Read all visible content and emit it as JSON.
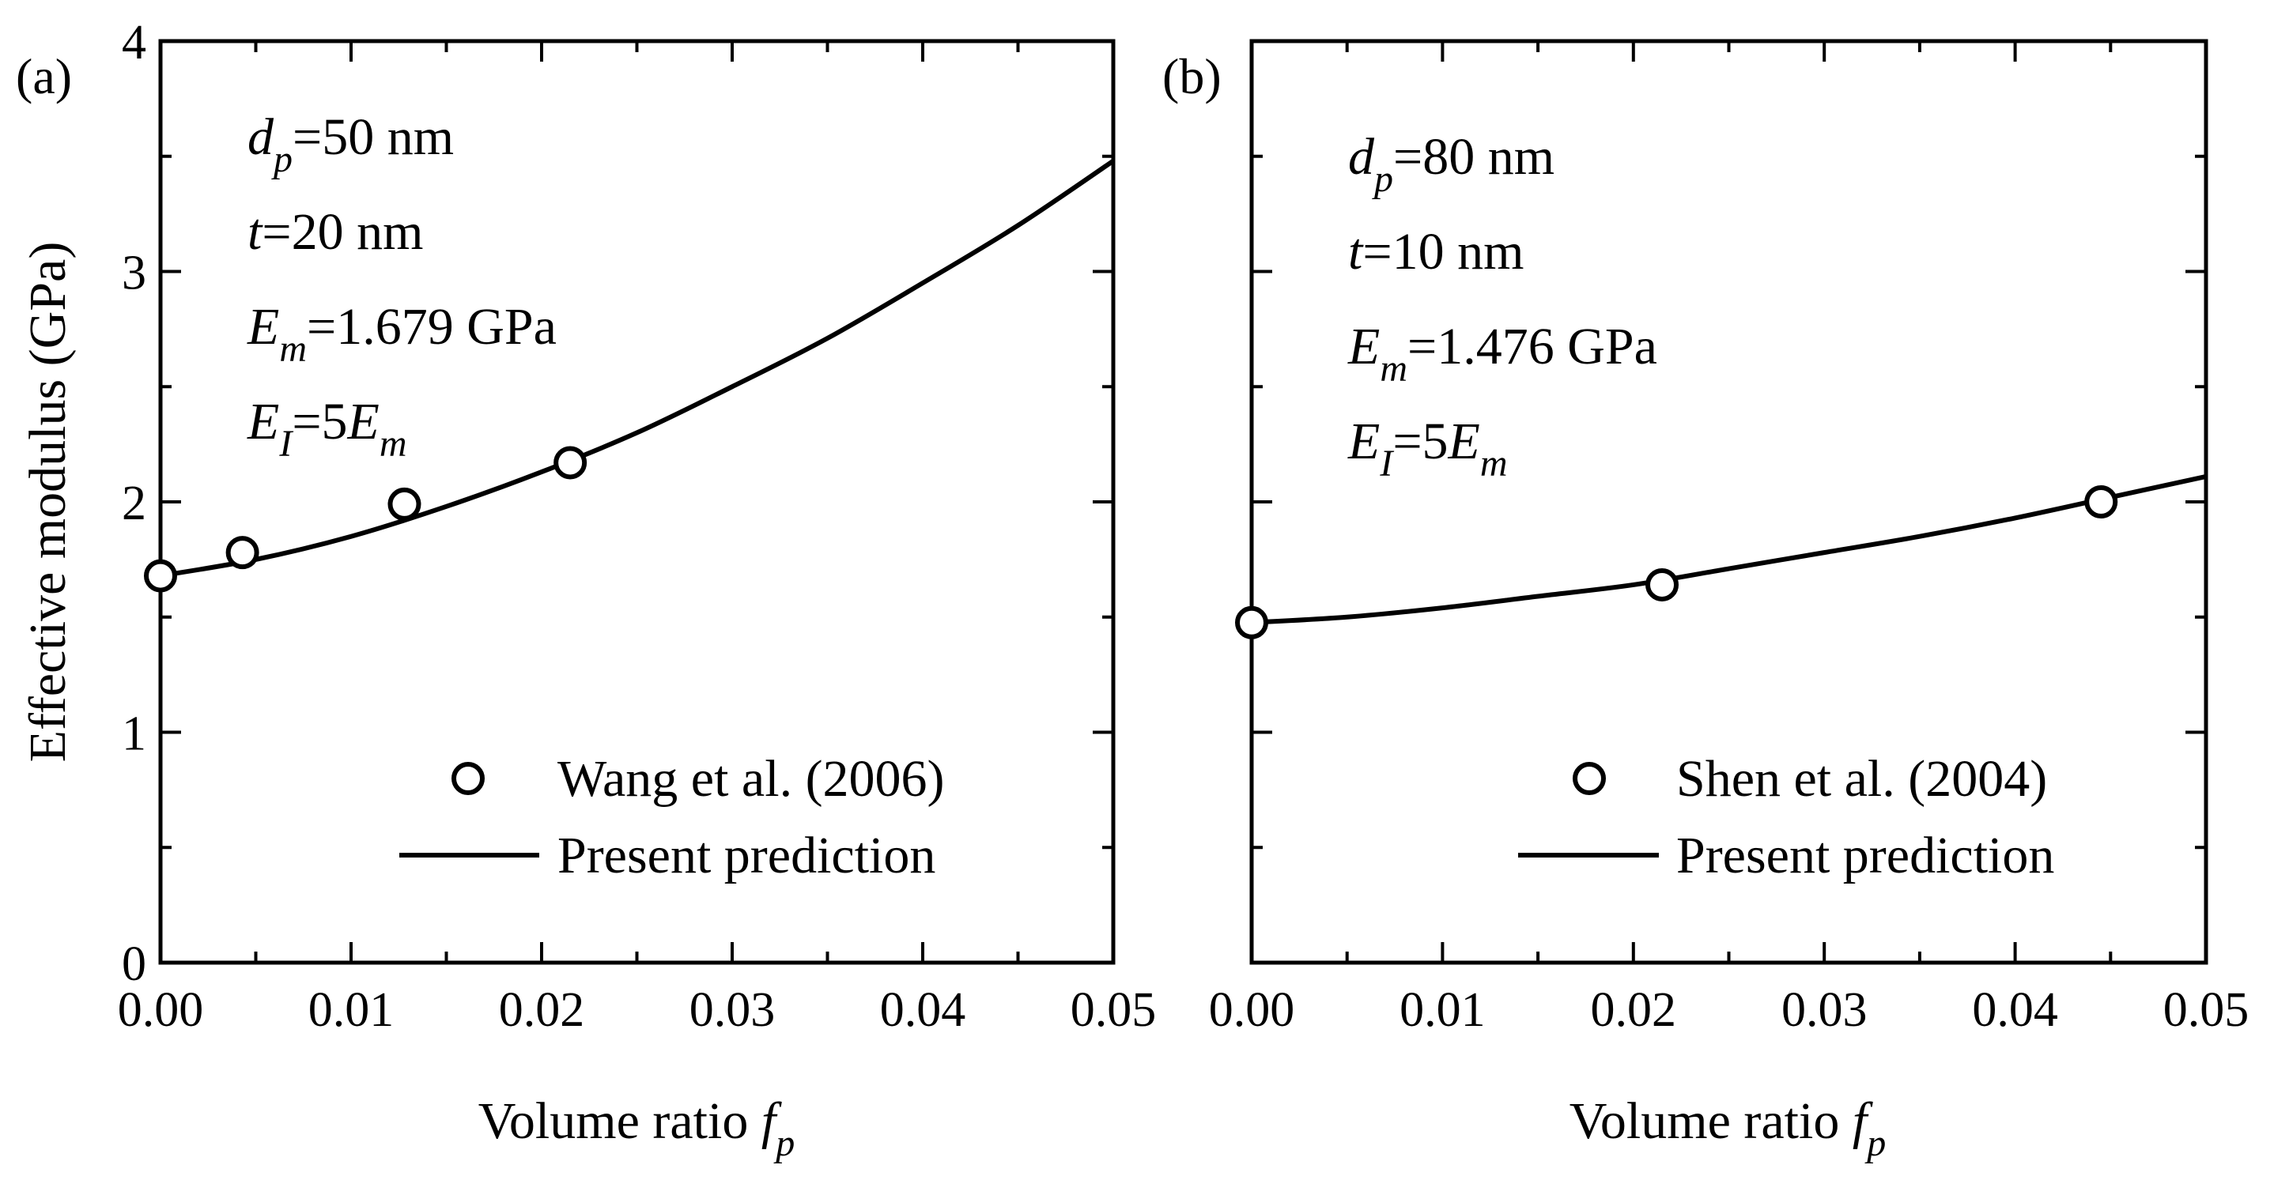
{
  "chart_data": [
    {
      "type": "scatter",
      "panel_label": "(a)",
      "xlabel": "Volume ratio",
      "xlabel_var": "f",
      "xlabel_sub": "p",
      "ylabel": "Effective modulus (GPa)",
      "xlim": [
        0.0,
        0.05
      ],
      "ylim": [
        0,
        4
      ],
      "xticks": [
        0.0,
        0.01,
        0.02,
        0.03,
        0.04,
        0.05
      ],
      "xtick_labels": [
        "0.00",
        "0.01",
        "0.02",
        "0.03",
        "0.04",
        "0.05"
      ],
      "yticks": [
        0,
        1,
        2,
        3,
        4
      ],
      "ytick_labels": [
        "0",
        "1",
        "2",
        "3",
        "4"
      ],
      "annotations": [
        {
          "var": "d",
          "sub": "p",
          "text": "=50 nm"
        },
        {
          "var": "t",
          "sub": "",
          "text": "=20 nm"
        },
        {
          "var": "E",
          "sub": "m",
          "text": "=1.679 GPa"
        },
        {
          "var": "E",
          "sub": "I",
          "text": "=5",
          "var2": "E",
          "sub2": "m"
        }
      ],
      "series": [
        {
          "name": "Wang et al. (2006)",
          "kind": "markers",
          "x": [
            0.0,
            0.0043,
            0.0128,
            0.0215
          ],
          "y": [
            1.679,
            1.78,
            1.99,
            2.17
          ]
        },
        {
          "name": "Present prediction",
          "kind": "line",
          "x": [
            0.0,
            0.005,
            0.01,
            0.015,
            0.02,
            0.025,
            0.03,
            0.035,
            0.04,
            0.045,
            0.05
          ],
          "y": [
            1.679,
            1.75,
            1.85,
            1.98,
            2.13,
            2.3,
            2.5,
            2.71,
            2.95,
            3.2,
            3.48
          ]
        }
      ],
      "legend": [
        {
          "label": "Wang et al. (2006)",
          "kind": "marker"
        },
        {
          "label": "Present prediction",
          "kind": "line"
        }
      ],
      "legend_position": "bottom-right"
    },
    {
      "type": "scatter",
      "panel_label": "(b)",
      "xlabel": "Volume ratio",
      "xlabel_var": "f",
      "xlabel_sub": "p",
      "ylabel": "",
      "xlim": [
        0.0,
        0.05
      ],
      "ylim": [
        0,
        4
      ],
      "xticks": [
        0.0,
        0.01,
        0.02,
        0.03,
        0.04,
        0.05
      ],
      "xtick_labels": [
        "0.00",
        "0.01",
        "0.02",
        "0.03",
        "0.04",
        "0.05"
      ],
      "yticks": [
        0,
        1,
        2,
        3,
        4
      ],
      "ytick_labels": [],
      "annotations": [
        {
          "var": "d",
          "sub": "p",
          "text": "=80 nm"
        },
        {
          "var": "t",
          "sub": "",
          "text": "=10 nm"
        },
        {
          "var": "E",
          "sub": "m",
          "text": "=1.476 GPa"
        },
        {
          "var": "E",
          "sub": "I",
          "text": "=5",
          "var2": "E",
          "sub2": "m"
        }
      ],
      "series": [
        {
          "name": "Shen et al. (2004)",
          "kind": "markers",
          "x": [
            0.0,
            0.0215,
            0.0445
          ],
          "y": [
            1.476,
            1.64,
            2.0
          ]
        },
        {
          "name": "Present prediction",
          "kind": "line",
          "x": [
            0.0,
            0.005,
            0.01,
            0.015,
            0.02,
            0.025,
            0.03,
            0.035,
            0.04,
            0.045,
            0.05
          ],
          "y": [
            1.476,
            1.5,
            1.54,
            1.59,
            1.64,
            1.71,
            1.78,
            1.85,
            1.93,
            2.02,
            2.11
          ]
        }
      ],
      "legend": [
        {
          "label": "Shen et al. (2004)",
          "kind": "marker"
        },
        {
          "label": "Present prediction",
          "kind": "line"
        }
      ],
      "legend_position": "bottom-right"
    }
  ]
}
